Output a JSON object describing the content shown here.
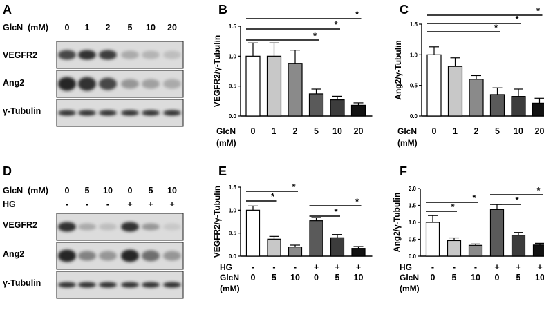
{
  "panels": {
    "A": {
      "letter": "A",
      "conc_label": "GlcN  (mM)",
      "concs": [
        "0",
        "1",
        "2",
        "5",
        "10",
        "20"
      ],
      "rows": [
        "VEGFR2",
        "Ang2",
        "γ-Tubulin"
      ]
    },
    "D": {
      "letter": "D",
      "conc_label": "GlcN  (mM)",
      "concs": [
        "0",
        "5",
        "10",
        "0",
        "5",
        "10"
      ],
      "hg_label": "HG",
      "hg": [
        "-",
        "-",
        "-",
        "+",
        "+",
        "+"
      ],
      "rows": [
        "VEGFR2",
        "Ang2",
        "γ-Tubulin"
      ]
    }
  },
  "chart_data": [
    {
      "panel": "B",
      "letter": "B",
      "type": "bar",
      "ylabel": "VEGFR2/γ-Tubulin",
      "ylim": [
        0,
        1.5
      ],
      "yticks": [
        "0.0",
        "0.5",
        "1.0",
        "1.5"
      ],
      "categories": [
        "0",
        "1",
        "2",
        "5",
        "10",
        "20"
      ],
      "values": [
        1.0,
        1.0,
        0.88,
        0.37,
        0.27,
        0.18
      ],
      "errors": [
        0.22,
        0.22,
        0.22,
        0.08,
        0.06,
        0.04
      ],
      "colors": [
        "#ffffff",
        "#c8c8c8",
        "#8a8a8a",
        "#5a5a5a",
        "#3c3c3c",
        "#111111"
      ],
      "xaxis_label": "GlcN",
      "xaxis_unit": "(mM)",
      "significance": [
        "*",
        "*",
        "*"
      ]
    },
    {
      "panel": "C",
      "letter": "C",
      "type": "bar",
      "ylabel": "Ang2/γ-Tubulin",
      "ylim": [
        0,
        1.5
      ],
      "yticks": [
        "0.0",
        "0.5",
        "1.0",
        "1.5"
      ],
      "categories": [
        "0",
        "1",
        "2",
        "5",
        "10",
        "20"
      ],
      "values": [
        1.0,
        0.81,
        0.6,
        0.35,
        0.32,
        0.21
      ],
      "errors": [
        0.13,
        0.14,
        0.06,
        0.11,
        0.12,
        0.08
      ],
      "colors": [
        "#ffffff",
        "#c8c8c8",
        "#8a8a8a",
        "#5a5a5a",
        "#3c3c3c",
        "#111111"
      ],
      "xaxis_label": "GlcN",
      "xaxis_unit": "(mM)",
      "significance": [
        "*",
        "*",
        "*"
      ]
    },
    {
      "panel": "E",
      "letter": "E",
      "type": "bar",
      "ylabel": "VEGFR2/γ-Tubulin",
      "ylim": [
        0,
        1.5
      ],
      "yticks": [
        "0.0",
        "0.5",
        "1.0",
        "1.5"
      ],
      "categories": [
        "0",
        "5",
        "10",
        "0",
        "5",
        "10"
      ],
      "hg": [
        "-",
        "-",
        "-",
        "+",
        "+",
        "+"
      ],
      "values": [
        1.0,
        0.37,
        0.2,
        0.77,
        0.4,
        0.17
      ],
      "errors": [
        0.09,
        0.06,
        0.04,
        0.07,
        0.07,
        0.04
      ],
      "colors": [
        "#ffffff",
        "#c8c8c8",
        "#8a8a8a",
        "#5a5a5a",
        "#3c3c3c",
        "#111111"
      ],
      "hg_label": "HG",
      "xaxis_label": "GlcN",
      "xaxis_unit": "(mM)",
      "significance": [
        "*",
        "*",
        "*",
        "*"
      ]
    },
    {
      "panel": "F",
      "letter": "F",
      "type": "bar",
      "ylabel": "Ang2/γ-Tubulin",
      "ylim": [
        0,
        2.0
      ],
      "yticks": [
        "0.0",
        "0.5",
        "1.0",
        "1.5",
        "2.0"
      ],
      "categories": [
        "0",
        "5",
        "10",
        "0",
        "5",
        "10"
      ],
      "hg": [
        "-",
        "-",
        "-",
        "+",
        "+",
        "+"
      ],
      "values": [
        1.0,
        0.46,
        0.32,
        1.38,
        0.62,
        0.33
      ],
      "errors": [
        0.2,
        0.08,
        0.04,
        0.15,
        0.08,
        0.05
      ],
      "colors": [
        "#ffffff",
        "#c8c8c8",
        "#8a8a8a",
        "#5a5a5a",
        "#3c3c3c",
        "#111111"
      ],
      "hg_label": "HG",
      "xaxis_label": "GlcN",
      "xaxis_unit": "(mM)",
      "significance": [
        "*",
        "*",
        "*",
        "*"
      ]
    }
  ]
}
